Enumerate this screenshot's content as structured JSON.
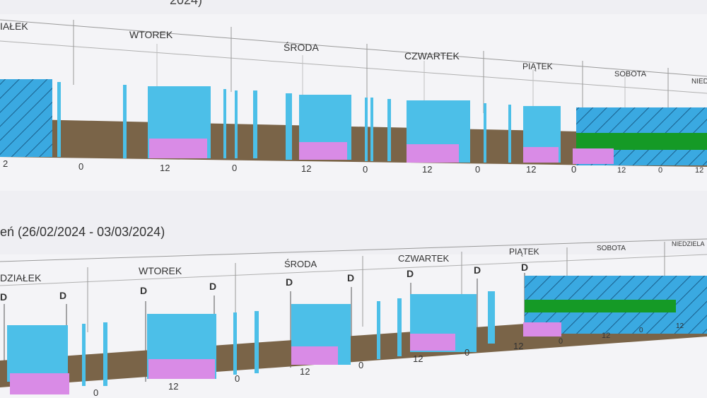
{
  "top_title_fragment": "2024)",
  "week1": {
    "days": [
      "IAŁEK",
      "WTOREK",
      "ŚRODA",
      "CZWARTEK",
      "PIĄTEK",
      "SOBOTA",
      "NIEDZ"
    ],
    "ticks": [
      "2",
      "0",
      "12",
      "0",
      "12",
      "0",
      "12",
      "0",
      "12",
      "0",
      "12",
      "0",
      "12"
    ]
  },
  "week2": {
    "title": "eń (26/02/2024 - 03/03/2024)",
    "days": [
      "DZIAŁEK",
      "WTOREK",
      "ŚRODA",
      "CZWARTEK",
      "PIĄTEK",
      "SOBOTA",
      "NIEDZIELA"
    ],
    "ticks": [
      "0",
      "12",
      "0",
      "12",
      "0",
      "12",
      "0",
      "12",
      "0",
      "12",
      "0",
      "12"
    ],
    "marker": "D"
  },
  "colors": {
    "bar_blue": "#4cbfe8",
    "rest_brown": "#7a6448",
    "pink": "#d98be6",
    "green": "#159a26",
    "stripe_bg": "#39a8e0",
    "grid_line": "#9a9a9a"
  },
  "icons": [
    "hatch-pattern"
  ]
}
